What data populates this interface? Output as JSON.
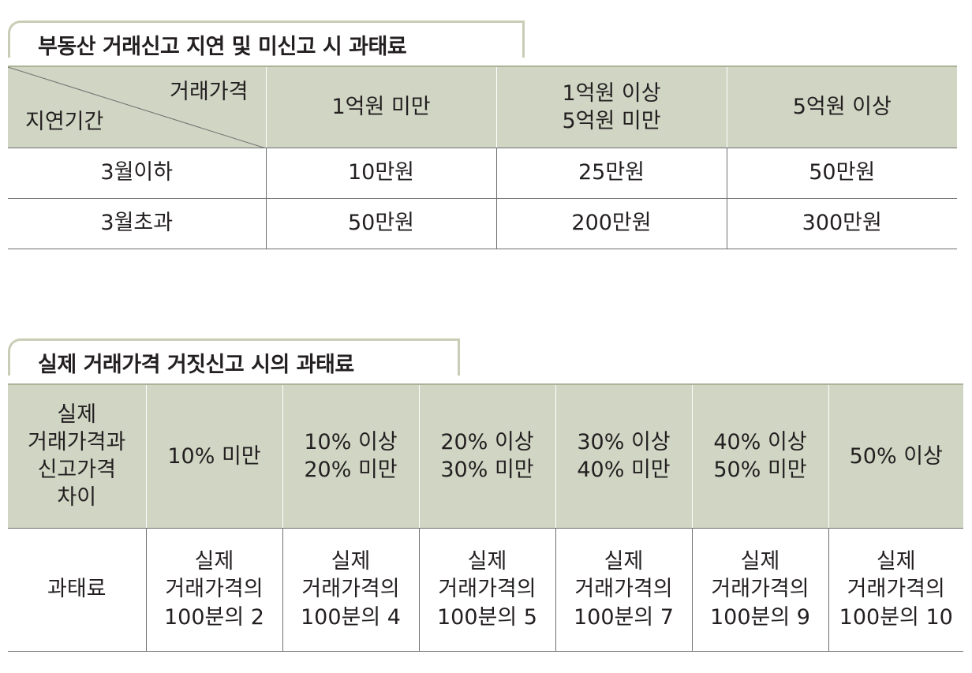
{
  "table1": {
    "title": "부동산 거래신고 지연 및 미신고 시 과태료",
    "corner_top": "거래가격",
    "corner_bottom": "지연기간",
    "columns": [
      {
        "line1": "1억원 미만",
        "line2": ""
      },
      {
        "line1": "1억원 이상",
        "line2": "5억원 미만"
      },
      {
        "line1": "5억원 이상",
        "line2": ""
      }
    ],
    "rows": [
      {
        "label": "3월이하",
        "values": [
          "10만원",
          "25만원",
          "50만원"
        ]
      },
      {
        "label": "3월초과",
        "values": [
          "50만원",
          "200만원",
          "300만원"
        ]
      }
    ]
  },
  "table2": {
    "title": "실제 거래가격 거짓신고 시의 과태료",
    "corner_lines": [
      "실제",
      "거래가격과",
      "신고가격",
      "차이"
    ],
    "columns": [
      {
        "line1": "10% 미만",
        "line2": ""
      },
      {
        "line1": "10% 이상",
        "line2": "20% 미만"
      },
      {
        "line1": "20% 이상",
        "line2": "30% 미만"
      },
      {
        "line1": "30% 이상",
        "line2": "40% 미만"
      },
      {
        "line1": "40% 이상",
        "line2": "50% 미만"
      },
      {
        "line1": "50% 이상",
        "line2": ""
      }
    ],
    "row_label": "과태료",
    "cells": [
      {
        "line1": "실제",
        "line2": "거래가격의",
        "line3": "100분의 2"
      },
      {
        "line1": "실제",
        "line2": "거래가격의",
        "line3": "100분의 4"
      },
      {
        "line1": "실제",
        "line2": "거래가격의",
        "line3": "100분의 5"
      },
      {
        "line1": "실제",
        "line2": "거래가격의",
        "line3": "100분의 7"
      },
      {
        "line1": "실제",
        "line2": "거래가격의",
        "line3": "100분의 9"
      },
      {
        "line1": "실제",
        "line2": "거래가격의",
        "line3": "100분의 10"
      }
    ]
  }
}
